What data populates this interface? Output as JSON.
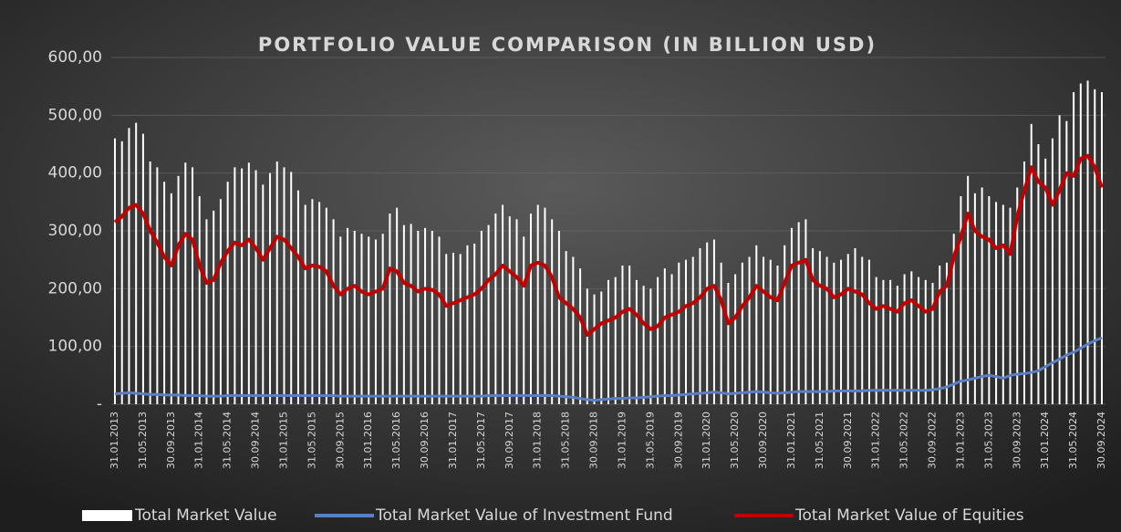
{
  "chart_data": {
    "type": "combo",
    "title": "PORTFOLIO VALUE COMPARISON (IN BILLION USD)",
    "categories": [
      "31.01.2013",
      null,
      null,
      null,
      "31.05.2013",
      null,
      null,
      null,
      "30.09.2013",
      null,
      null,
      null,
      "31.01.2014",
      null,
      null,
      null,
      "31.05.2014",
      null,
      null,
      null,
      "30.09.2014",
      null,
      null,
      null,
      "31.01.2015",
      null,
      null,
      null,
      "31.05.2015",
      null,
      null,
      null,
      "30.09.2015",
      null,
      null,
      null,
      "31.01.2016",
      null,
      null,
      null,
      "31.05.2016",
      null,
      null,
      null,
      "30.09.2016",
      null,
      null,
      null,
      "31.01.2017",
      null,
      null,
      null,
      "31.05.2017",
      null,
      null,
      null,
      "30.09.2017",
      null,
      null,
      null,
      "31.01.2018",
      null,
      null,
      null,
      "31.05.2018",
      null,
      null,
      null,
      "30.09.2018",
      null,
      null,
      null,
      "31.01.2019",
      null,
      null,
      null,
      "31.05.2019",
      null,
      null,
      null,
      "30.09.2019",
      null,
      null,
      null,
      "31.01.2020",
      null,
      null,
      null,
      "31.05.2020",
      null,
      null,
      null,
      "30.09.2020",
      null,
      null,
      null,
      "31.01.2021",
      null,
      null,
      null,
      "31.05.2021",
      null,
      null,
      null,
      "30.09.2021",
      null,
      null,
      null,
      "31.01.2022",
      null,
      null,
      null,
      "31.05.2022",
      null,
      null,
      null,
      "30.09.2022",
      null,
      null,
      null,
      "31.01.2023",
      null,
      null,
      null,
      "31.05.2023",
      null,
      null,
      null,
      "30.09.2023",
      null,
      null,
      null,
      "31.01.2024",
      null,
      null,
      null,
      "31.05.2024",
      null,
      null,
      null,
      "30.09.2024"
    ],
    "series": [
      {
        "name": "Total Market Value",
        "type": "bar",
        "color": "#ffffff",
        "values": [
          460,
          455,
          478,
          487,
          468,
          420,
          410,
          385,
          365,
          395,
          418,
          410,
          360,
          320,
          335,
          355,
          385,
          410,
          408,
          418,
          405,
          380,
          400,
          420,
          410,
          402,
          370,
          345,
          355,
          350,
          340,
          320,
          290,
          305,
          300,
          295,
          290,
          285,
          295,
          330,
          340,
          310,
          312,
          300,
          305,
          300,
          290,
          260,
          262,
          260,
          275,
          278,
          300,
          310,
          330,
          345,
          325,
          320,
          290,
          330,
          345,
          340,
          320,
          300,
          265,
          255,
          235,
          200,
          190,
          195,
          215,
          220,
          240,
          240,
          215,
          205,
          200,
          220,
          235,
          225,
          245,
          250,
          255,
          270,
          280,
          285,
          245,
          210,
          225,
          245,
          255,
          275,
          255,
          250,
          240,
          275,
          305,
          315,
          320,
          270,
          265,
          255,
          245,
          250,
          260,
          270,
          255,
          250,
          220,
          215,
          215,
          205,
          225,
          230,
          220,
          215,
          210,
          240,
          245,
          295,
          360,
          395,
          365,
          375,
          360,
          350,
          345,
          340,
          375,
          420,
          485,
          450,
          425,
          460,
          500,
          490,
          540,
          555,
          560,
          545,
          540
        ]
      },
      {
        "name": "Total Market Value of Investment Fund",
        "type": "line",
        "color": "#5b7fc4",
        "values": [
          18,
          19,
          20,
          19,
          18,
          17,
          17,
          16,
          16,
          16,
          15,
          15,
          15,
          14,
          14,
          14,
          15,
          15,
          15,
          15,
          15,
          15,
          15,
          15,
          15,
          15,
          15,
          15,
          15,
          15,
          15,
          15,
          14,
          14,
          14,
          14,
          14,
          14,
          14,
          14,
          14,
          14,
          14,
          14,
          14,
          14,
          14,
          14,
          14,
          14,
          14,
          14,
          14,
          15,
          15,
          15,
          15,
          15,
          15,
          15,
          15,
          15,
          15,
          14,
          13,
          12,
          10,
          8,
          7,
          8,
          9,
          10,
          10,
          11,
          11,
          12,
          13,
          14,
          15,
          15,
          16,
          17,
          18,
          19,
          20,
          21,
          20,
          18,
          19,
          20,
          21,
          22,
          21,
          20,
          19,
          20,
          21,
          22,
          22,
          22,
          22,
          22,
          23,
          23,
          23,
          23,
          23,
          24,
          24,
          24,
          24,
          24,
          24,
          24,
          24,
          24,
          25,
          27,
          30,
          35,
          40,
          42,
          45,
          48,
          50,
          48,
          45,
          50,
          52,
          53,
          55,
          58,
          65,
          72,
          78,
          85,
          90,
          97,
          104,
          110,
          115
        ]
      },
      {
        "name": "Total Market Value of Equities",
        "type": "line",
        "color": "#c00000",
        "values": [
          315,
          325,
          340,
          345,
          330,
          300,
          280,
          255,
          240,
          275,
          295,
          285,
          240,
          210,
          215,
          245,
          265,
          280,
          275,
          285,
          270,
          250,
          270,
          290,
          285,
          270,
          255,
          235,
          240,
          238,
          230,
          205,
          190,
          200,
          205,
          195,
          190,
          195,
          200,
          235,
          230,
          210,
          205,
          195,
          200,
          198,
          190,
          170,
          175,
          180,
          185,
          190,
          200,
          215,
          225,
          240,
          230,
          220,
          205,
          240,
          245,
          240,
          220,
          185,
          175,
          165,
          150,
          120,
          130,
          140,
          145,
          150,
          160,
          165,
          155,
          140,
          130,
          135,
          150,
          155,
          160,
          170,
          175,
          185,
          200,
          205,
          180,
          140,
          150,
          170,
          185,
          205,
          195,
          185,
          180,
          210,
          240,
          245,
          250,
          215,
          205,
          200,
          185,
          190,
          200,
          195,
          190,
          175,
          165,
          170,
          165,
          160,
          175,
          180,
          170,
          160,
          165,
          195,
          205,
          255,
          290,
          330,
          300,
          290,
          285,
          270,
          275,
          260,
          325,
          370,
          410,
          385,
          375,
          345,
          370,
          400,
          395,
          425,
          430,
          410,
          375
        ]
      }
    ],
    "ylim": [
      0,
      600
    ],
    "yticks": [
      {
        "value": 0,
        "label": "-"
      },
      {
        "value": 100,
        "label": "100,00"
      },
      {
        "value": 200,
        "label": "200,00"
      },
      {
        "value": 300,
        "label": "300,00"
      },
      {
        "value": 400,
        "label": "400,00"
      },
      {
        "value": 500,
        "label": "500,00"
      },
      {
        "value": 600,
        "label": "600,00"
      }
    ],
    "grid": true,
    "legend": "bottom"
  }
}
